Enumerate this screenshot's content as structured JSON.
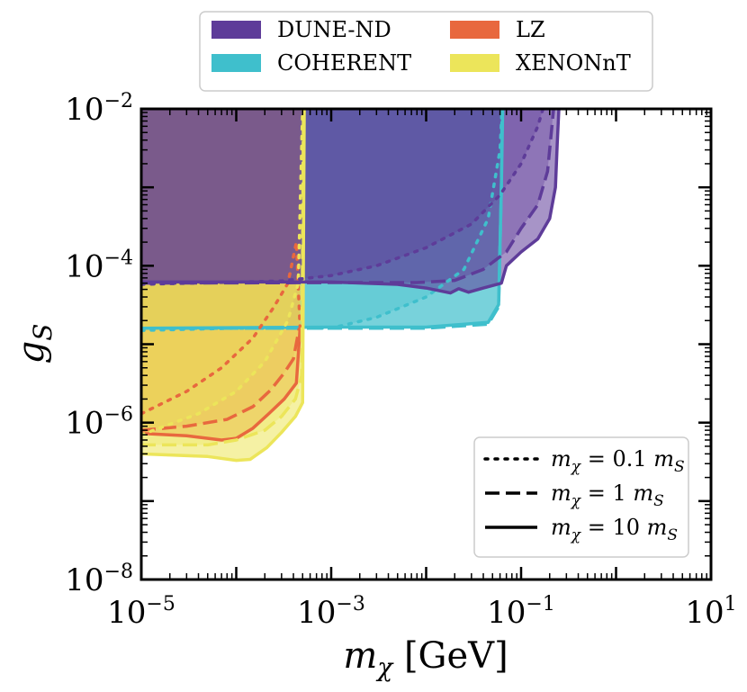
{
  "chart_data": {
    "type": "area",
    "title": "",
    "xlabel": {
      "var": "m",
      "sub": "χ",
      "unit": " [GeV]"
    },
    "ylabel": {
      "var": "g",
      "sub": "S"
    },
    "xscale": "log",
    "yscale": "log",
    "xlim": [
      1e-05,
      10
    ],
    "ylim": [
      1e-08,
      0.01
    ],
    "x_ticks": [
      {
        "value": 1e-05,
        "base": "10",
        "exp": "−5"
      },
      {
        "value": 0.001,
        "base": "10",
        "exp": "−3"
      },
      {
        "value": 0.1,
        "base": "10",
        "exp": "−1"
      },
      {
        "value": 10,
        "base": "10",
        "exp": "1"
      }
    ],
    "y_ticks": [
      {
        "value": 1e-08,
        "base": "10",
        "exp": "−8"
      },
      {
        "value": 1e-06,
        "base": "10",
        "exp": "−6"
      },
      {
        "value": 0.0001,
        "base": "10",
        "exp": "−4"
      },
      {
        "value": 0.01,
        "base": "10",
        "exp": "−2"
      }
    ],
    "legend_experiments": {
      "placement": "top-outside",
      "entries": [
        {
          "label": "DUNE-ND",
          "color": "#5e3c99"
        },
        {
          "label": "LZ",
          "color": "#e8683e"
        },
        {
          "label": "COHERENT",
          "color": "#3fbfcc"
        },
        {
          "label": "XENONnT",
          "color": "#ece55a"
        }
      ]
    },
    "legend_ratios": {
      "placement": "bottom-right",
      "entries": [
        {
          "style": "dotted",
          "prefix": "m",
          "sub": "χ",
          "text": " = 0.1 ",
          "suffix": "m",
          "suffix_sub": "S"
        },
        {
          "style": "dashed",
          "prefix": "m",
          "sub": "χ",
          "text": " = 1 ",
          "suffix": "m",
          "suffix_sub": "S"
        },
        {
          "style": "solid",
          "prefix": "m",
          "sub": "χ",
          "text": " = 10 ",
          "suffix": "m",
          "suffix_sub": "S"
        }
      ]
    },
    "series": [
      {
        "name": "COHERENT",
        "color": "#3fbfcc",
        "curves": {
          "dotted": [
            [
              1e-05,
              1.5e-05
            ],
            [
              0.0001,
              1.6e-05
            ],
            [
              0.0003,
              1.6e-05
            ],
            [
              0.001,
              1.6e-05
            ],
            [
              0.003,
              2.2e-05
            ],
            [
              0.01,
              4e-05
            ],
            [
              0.025,
              9e-05
            ],
            [
              0.045,
              0.0004
            ],
            [
              0.06,
              0.003
            ],
            [
              0.063,
              0.01
            ]
          ],
          "dashed": [
            [
              1e-05,
              1.6e-05
            ],
            [
              0.001,
              1.6e-05
            ],
            [
              0.01,
              1.6e-05
            ],
            [
              0.045,
              1.8e-05
            ],
            [
              0.058,
              3e-05
            ],
            [
              0.062,
              0.001
            ],
            [
              0.063,
              0.01
            ]
          ],
          "solid": [
            [
              1e-05,
              1.6e-05
            ],
            [
              0.001,
              1.65e-05
            ],
            [
              0.01,
              1.65e-05
            ],
            [
              0.045,
              1.9e-05
            ],
            [
              0.058,
              3.2e-05
            ],
            [
              0.062,
              0.001
            ],
            [
              0.064,
              0.01
            ]
          ]
        }
      },
      {
        "name": "LZ",
        "color": "#e8683e",
        "curves": {
          "dotted": [
            [
              1e-05,
              1.3e-06
            ],
            [
              3e-05,
              2.5e-06
            ],
            [
              7e-05,
              5e-06
            ],
            [
              0.00015,
              1.2e-05
            ],
            [
              0.00025,
              3e-05
            ],
            [
              0.00035,
              6e-05
            ],
            [
              0.00043,
              0.0002
            ],
            [
              0.00047,
              1.6e-05
            ]
          ],
          "dashed": [
            [
              1e-05,
              8e-07
            ],
            [
              3e-05,
              9e-07
            ],
            [
              8e-05,
              1.1e-06
            ],
            [
              0.00015,
              1.6e-06
            ],
            [
              0.00023,
              2.6e-06
            ],
            [
              0.00032,
              4.3e-06
            ],
            [
              0.0004,
              6.5e-06
            ],
            [
              0.00046,
              1.6e-05
            ]
          ],
          "solid": [
            [
              1e-05,
              7.3e-07
            ],
            [
              3e-05,
              6.8e-07
            ],
            [
              7e-05,
              6e-07
            ],
            [
              0.0001,
              6.3e-07
            ],
            [
              0.00015,
              8.5e-07
            ],
            [
              0.00022,
              1.3e-06
            ],
            [
              0.00032,
              2e-06
            ],
            [
              0.00043,
              3.2e-06
            ],
            [
              0.00047,
              1.6e-05
            ]
          ]
        }
      },
      {
        "name": "XENONnT",
        "color": "#ece55a",
        "curves": {
          "dotted": [
            [
              1e-05,
              7e-07
            ],
            [
              4e-05,
              1.3e-06
            ],
            [
              0.0001,
              2.5e-06
            ],
            [
              0.0002,
              6e-06
            ],
            [
              0.00035,
              2e-05
            ],
            [
              0.00045,
              6e-05
            ],
            [
              0.0005,
              0.01
            ]
          ],
          "dashed": [
            [
              1e-05,
              5.2e-07
            ],
            [
              5e-05,
              5.2e-07
            ],
            [
              0.0001,
              6e-07
            ],
            [
              0.0002,
              8e-07
            ],
            [
              0.0003,
              1.2e-06
            ],
            [
              0.00042,
              2e-06
            ],
            [
              0.00049,
              4e-06
            ],
            [
              0.00051,
              0.01
            ]
          ],
          "solid": [
            [
              1e-05,
              4e-07
            ],
            [
              5e-05,
              3.7e-07
            ],
            [
              0.0001,
              3.3e-07
            ],
            [
              0.00014,
              3.4e-07
            ],
            [
              0.00021,
              4.8e-07
            ],
            [
              0.0003,
              7.5e-07
            ],
            [
              0.00042,
              1.2e-06
            ],
            [
              0.0005,
              1.8e-06
            ],
            [
              0.00052,
              0.01
            ]
          ]
        }
      },
      {
        "name": "DUNE-ND",
        "color": "#5e3c99",
        "curves": {
          "dotted": [
            [
              1e-05,
              5.8e-05
            ],
            [
              0.0003,
              6.4e-05
            ],
            [
              0.001,
              7.5e-05
            ],
            [
              0.003,
              0.0001
            ],
            [
              0.01,
              0.00017
            ],
            [
              0.03,
              0.00034
            ],
            [
              0.06,
              0.0008
            ],
            [
              0.1,
              0.002
            ],
            [
              0.15,
              0.006
            ],
            [
              0.17,
              0.01
            ]
          ],
          "dashed": [
            [
              1e-05,
              6e-05
            ],
            [
              0.001,
              6.1e-05
            ],
            [
              0.008,
              6.1e-05
            ],
            [
              0.02,
              6.5e-05
            ],
            [
              0.04,
              9e-05
            ],
            [
              0.07,
              0.00015
            ],
            [
              0.1,
              0.0003
            ],
            [
              0.15,
              0.0006
            ],
            [
              0.19,
              0.0016
            ],
            [
              0.22,
              0.01
            ]
          ],
          "solid": [
            [
              1e-05,
              6.2e-05
            ],
            [
              0.001,
              6.2e-05
            ],
            [
              0.005,
              5.8e-05
            ],
            [
              0.01,
              5.2e-05
            ],
            [
              0.018,
              4.5e-05
            ],
            [
              0.022,
              5.1e-05
            ],
            [
              0.028,
              4.6e-05
            ],
            [
              0.04,
              5.2e-05
            ],
            [
              0.062,
              6e-05
            ],
            [
              0.07,
              0.0001
            ],
            [
              0.1,
              0.00015
            ],
            [
              0.15,
              0.00022
            ],
            [
              0.2,
              0.0004
            ],
            [
              0.23,
              0.001
            ],
            [
              0.24,
              0.0035
            ],
            [
              0.25,
              0.01
            ]
          ]
        }
      }
    ]
  }
}
